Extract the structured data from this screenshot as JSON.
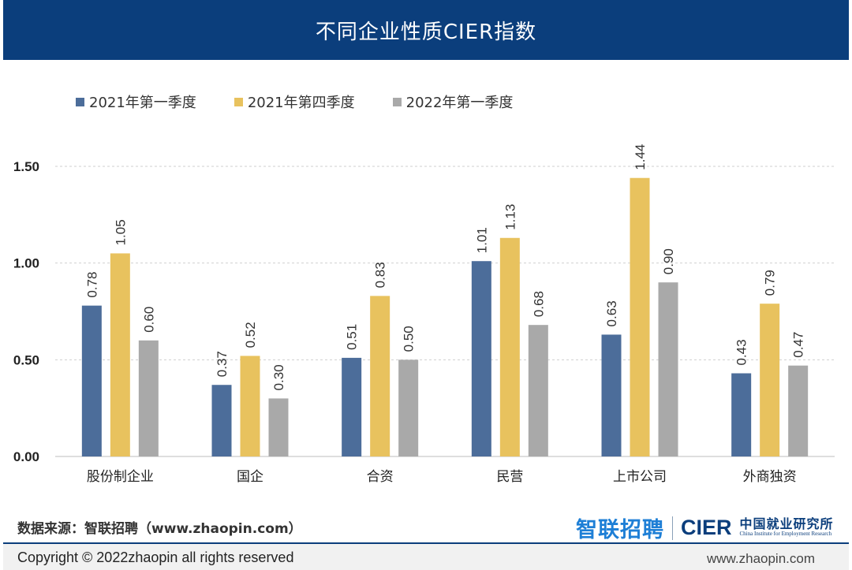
{
  "header": {
    "title": "不同企业性质CIER指数"
  },
  "chart_data": {
    "type": "bar",
    "title": "不同企业性质CIER指数",
    "categories": [
      "股份制企业",
      "国企",
      "合资",
      "民营",
      "上市公司",
      "外商独资"
    ],
    "series": [
      {
        "name": "2021年第一季度",
        "color": "#4c6d9a",
        "values": [
          0.78,
          0.37,
          0.51,
          1.01,
          0.63,
          0.43
        ]
      },
      {
        "name": "2021年第四季度",
        "color": "#e8c25e",
        "values": [
          1.05,
          0.52,
          0.83,
          1.13,
          1.44,
          0.79
        ]
      },
      {
        "name": "2022年第一季度",
        "color": "#a9a9a9",
        "values": [
          0.6,
          0.3,
          0.5,
          0.68,
          0.9,
          0.47
        ]
      }
    ],
    "value_labels": [
      [
        "0.78",
        "0.37",
        "0.51",
        "1.01",
        "0.63",
        "0.43"
      ],
      [
        "1.05",
        "0.52",
        "0.83",
        "1.13",
        "1.44",
        "0.79"
      ],
      [
        "0.60",
        "0.30",
        "0.50",
        "0.68",
        "0.90",
        "0.47"
      ]
    ],
    "yticks": [
      "0.00",
      "0.50",
      "1.00",
      "1.50"
    ],
    "ylim": [
      0,
      1.5
    ],
    "grid": true,
    "legend_position": "top-left",
    "xlabel": "",
    "ylabel": ""
  },
  "footer": {
    "source": "数据来源：智联招聘（www.zhaopin.com）",
    "brand_zhilian": "智联招聘",
    "brand_cier": "CIER",
    "brand_cier_cn": "中国就业研究所",
    "brand_cier_en": "China Institute for Employment Research",
    "copyright": "Copyright ©  2022zhaopin all rights reserved",
    "website": "www.zhaopin.com"
  }
}
